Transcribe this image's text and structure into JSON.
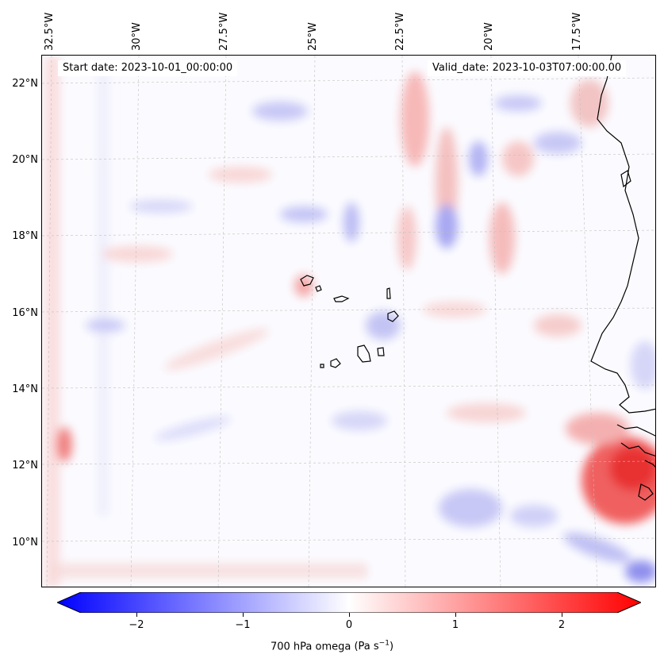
{
  "map": {
    "longitude_labels": [
      "32.5°W",
      "30°W",
      "27.5°W",
      "25°W",
      "22.5°W",
      "20°W",
      "17.5°W"
    ],
    "latitude_labels": [
      "22°N",
      "20°N",
      "18°N",
      "16°N",
      "14°N",
      "12°N",
      "10°N"
    ],
    "start_date": "Start date: 2023-10-01_00:00:00",
    "valid_date": "Valid_date: 2023-10-03T07:00:00.00",
    "variable": "700 hPa omega",
    "units_prefix": "(Pa s",
    "units_exponent": "−1",
    "units_suffix": ")",
    "colormap": "bwr",
    "colors": {
      "negative": "#0000ff",
      "zero": "#ffffff",
      "positive": "#ff0000",
      "coast": "#000000",
      "grid": "#c0c0c0"
    }
  },
  "colorbar": {
    "ticks": [
      "−2",
      "−1",
      "0",
      "1",
      "2"
    ],
    "tick_values": [
      -2,
      -1,
      0,
      1,
      2
    ],
    "range": [
      -2.6,
      2.6
    ],
    "extend": "both"
  }
}
